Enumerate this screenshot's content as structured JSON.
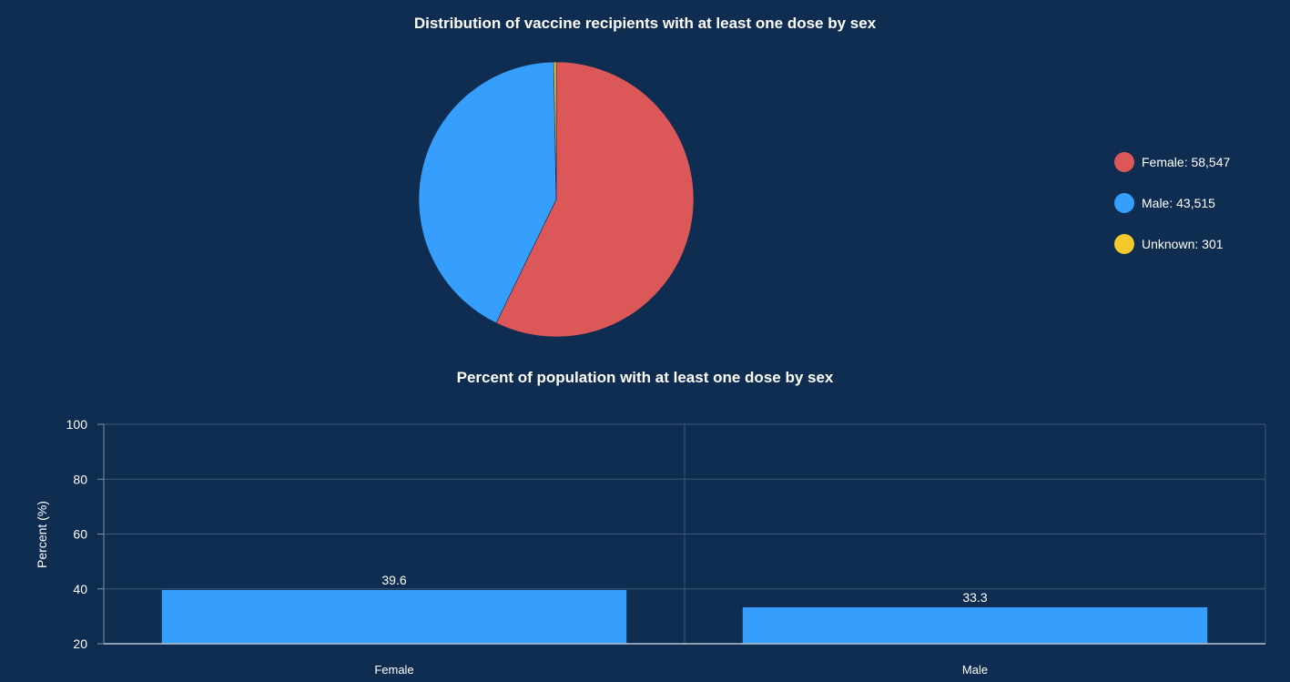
{
  "chart_data": [
    {
      "type": "pie",
      "title": "Distribution of vaccine recipients with at least one dose by sex",
      "slices": [
        {
          "label": "Female",
          "value": 58547,
          "value_text": "58,547",
          "color": "#dc5757"
        },
        {
          "label": "Male",
          "value": 43515,
          "value_text": "43,515",
          "color": "#369ffd"
        },
        {
          "label": "Unknown",
          "value": 301,
          "value_text": "301",
          "color": "#f5c92d"
        }
      ],
      "legend_position": "right"
    },
    {
      "type": "bar",
      "title": "Percent of population with at least one dose by sex",
      "categories": [
        "Female",
        "Male"
      ],
      "values": [
        39.6,
        33.3
      ],
      "value_labels": [
        "39.6",
        "33.3"
      ],
      "xlabel": "",
      "ylabel": "Percent (%)",
      "ylim": [
        20,
        100
      ],
      "yticks": [
        "20",
        "40",
        "60",
        "80",
        "100"
      ],
      "bar_color": "#369ffd",
      "grid": true
    }
  ]
}
